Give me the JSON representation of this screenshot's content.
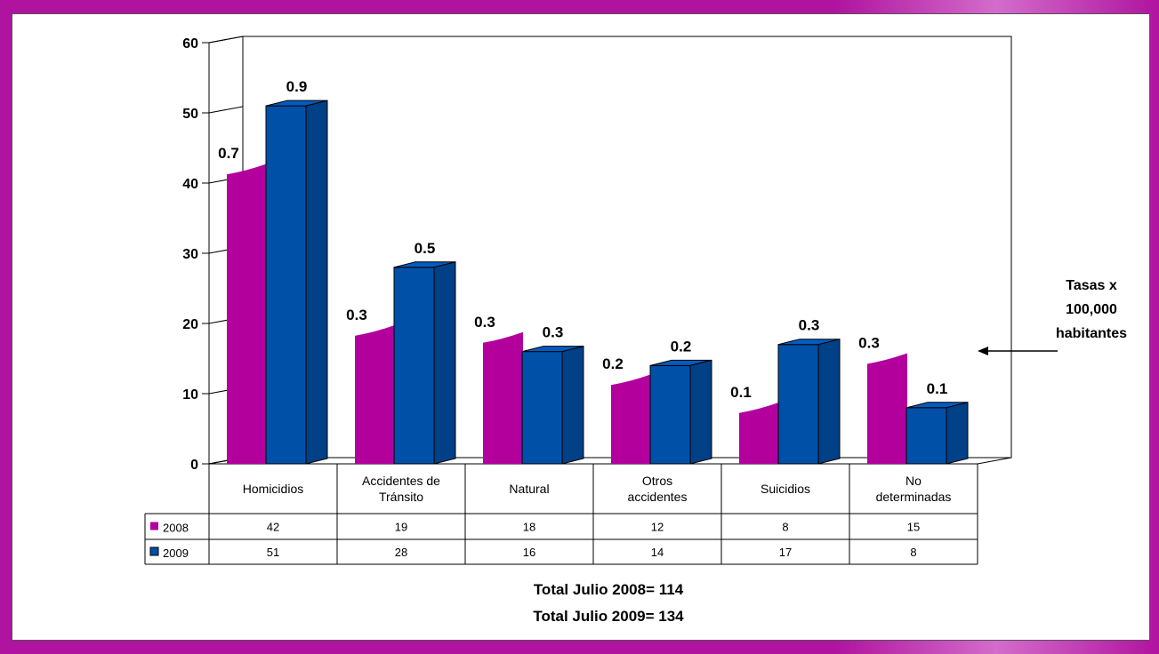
{
  "colors": {
    "frame": "#b0139f",
    "series_2008": "#b3009d",
    "series_2009": "#0050a8",
    "outline": "#000000"
  },
  "chart_data": {
    "type": "bar",
    "categories": [
      [
        "Homicidios"
      ],
      [
        "Accidentes de",
        "Tránsito"
      ],
      [
        "Natural"
      ],
      [
        "Otros",
        "accidentes"
      ],
      [
        "Suicidios"
      ],
      [
        "No",
        "determinadas"
      ]
    ],
    "series": [
      {
        "name": "2008",
        "values": [
          42,
          19,
          18,
          12,
          8,
          15
        ],
        "rate_labels": [
          "0.7",
          "0.3",
          "0.3",
          "0.2",
          "0.1",
          "0.3"
        ]
      },
      {
        "name": "2009",
        "values": [
          51,
          28,
          16,
          14,
          17,
          8
        ],
        "rate_labels": [
          "0.9",
          "0.5",
          "0.3",
          "0.2",
          "0.3",
          "0.1"
        ]
      }
    ],
    "ylim": [
      0,
      60
    ],
    "yticks": [
      0,
      10,
      20,
      30,
      40,
      50,
      60
    ],
    "annotation": [
      "Tasas x",
      "100,000",
      "habitantes"
    ],
    "footer": [
      "Total Julio 2008= 114",
      "Total Julio 2009= 134"
    ]
  }
}
